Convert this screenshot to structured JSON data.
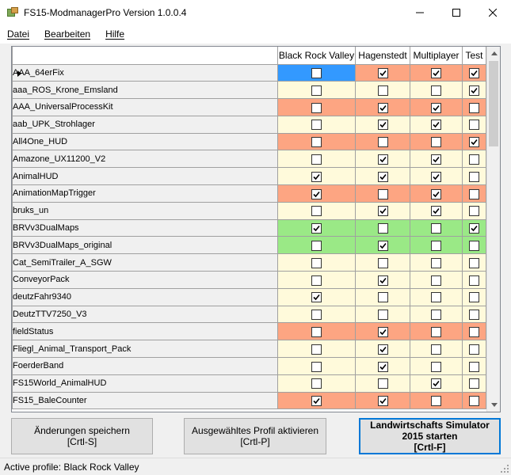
{
  "window": {
    "title": "FS15-ModmanagerPro Version 1.0.0.4"
  },
  "menu": [
    {
      "label": "Datei",
      "name": "menu-datei"
    },
    {
      "label": "Bearbeiten",
      "name": "menu-bearbeiten"
    },
    {
      "label": "Hilfe",
      "name": "menu-hilfe"
    }
  ],
  "columns": [
    "Black Rock Valley",
    "Hagenstedt",
    "Multiplayer",
    "Test"
  ],
  "colors": {
    "orange": "#fda582",
    "yellow": "#fffadb",
    "green": "#9ae986",
    "blue": "#3399ff"
  },
  "rows": [
    {
      "name": "AAA_64erFix",
      "color": "orange",
      "checks": [
        false,
        true,
        true,
        true
      ],
      "selected": true
    },
    {
      "name": "aaa_ROS_Krone_Emsland",
      "color": "yellow",
      "checks": [
        false,
        false,
        false,
        true
      ]
    },
    {
      "name": "AAA_UniversalProcessKit",
      "color": "orange",
      "checks": [
        false,
        true,
        true,
        false
      ]
    },
    {
      "name": "aab_UPK_Strohlager",
      "color": "yellow",
      "checks": [
        false,
        true,
        true,
        false
      ]
    },
    {
      "name": "All4One_HUD",
      "color": "orange",
      "checks": [
        false,
        false,
        false,
        true
      ]
    },
    {
      "name": "Amazone_UX11200_V2",
      "color": "yellow",
      "checks": [
        false,
        true,
        true,
        false
      ]
    },
    {
      "name": "AnimalHUD",
      "color": "yellow",
      "checks": [
        true,
        true,
        true,
        false
      ]
    },
    {
      "name": "AnimationMapTrigger",
      "color": "orange",
      "checks": [
        true,
        false,
        true,
        false
      ]
    },
    {
      "name": "bruks_un",
      "color": "yellow",
      "checks": [
        false,
        true,
        true,
        false
      ]
    },
    {
      "name": "BRVv3DualMaps",
      "color": "green",
      "checks": [
        true,
        false,
        false,
        true
      ]
    },
    {
      "name": "BRVv3DualMaps_original",
      "color": "green",
      "checks": [
        false,
        true,
        false,
        false
      ]
    },
    {
      "name": "Cat_SemiTrailer_A_SGW",
      "color": "yellow",
      "checks": [
        false,
        false,
        false,
        false
      ]
    },
    {
      "name": "ConveyorPack",
      "color": "yellow",
      "checks": [
        false,
        true,
        false,
        false
      ]
    },
    {
      "name": "deutzFahr9340",
      "color": "yellow",
      "checks": [
        true,
        false,
        false,
        false
      ]
    },
    {
      "name": "DeutzTTV7250_V3",
      "color": "yellow",
      "checks": [
        false,
        false,
        false,
        false
      ]
    },
    {
      "name": "fieldStatus",
      "color": "orange",
      "checks": [
        false,
        true,
        false,
        false
      ]
    },
    {
      "name": "Fliegl_Animal_Transport_Pack",
      "color": "yellow",
      "checks": [
        false,
        true,
        false,
        false
      ]
    },
    {
      "name": "FoerderBand",
      "color": "yellow",
      "checks": [
        false,
        true,
        false,
        false
      ]
    },
    {
      "name": "FS15World_AnimalHUD",
      "color": "yellow",
      "checks": [
        false,
        false,
        true,
        false
      ]
    },
    {
      "name": "FS15_BaleCounter",
      "color": "orange",
      "checks": [
        true,
        true,
        false,
        false
      ]
    }
  ],
  "buttons": {
    "save": {
      "line1": "Änderungen speichern",
      "line2": "[Crtl-S]"
    },
    "activate": {
      "line1": "Ausgewähltes Profil aktivieren",
      "line2": "[Crtl-P]"
    },
    "start": {
      "line1": "Landwirtschafts Simulator",
      "line2": "2015 starten",
      "line3": "[Crtl-F]"
    }
  },
  "status": {
    "text": "Active profile: Black Rock Valley"
  }
}
